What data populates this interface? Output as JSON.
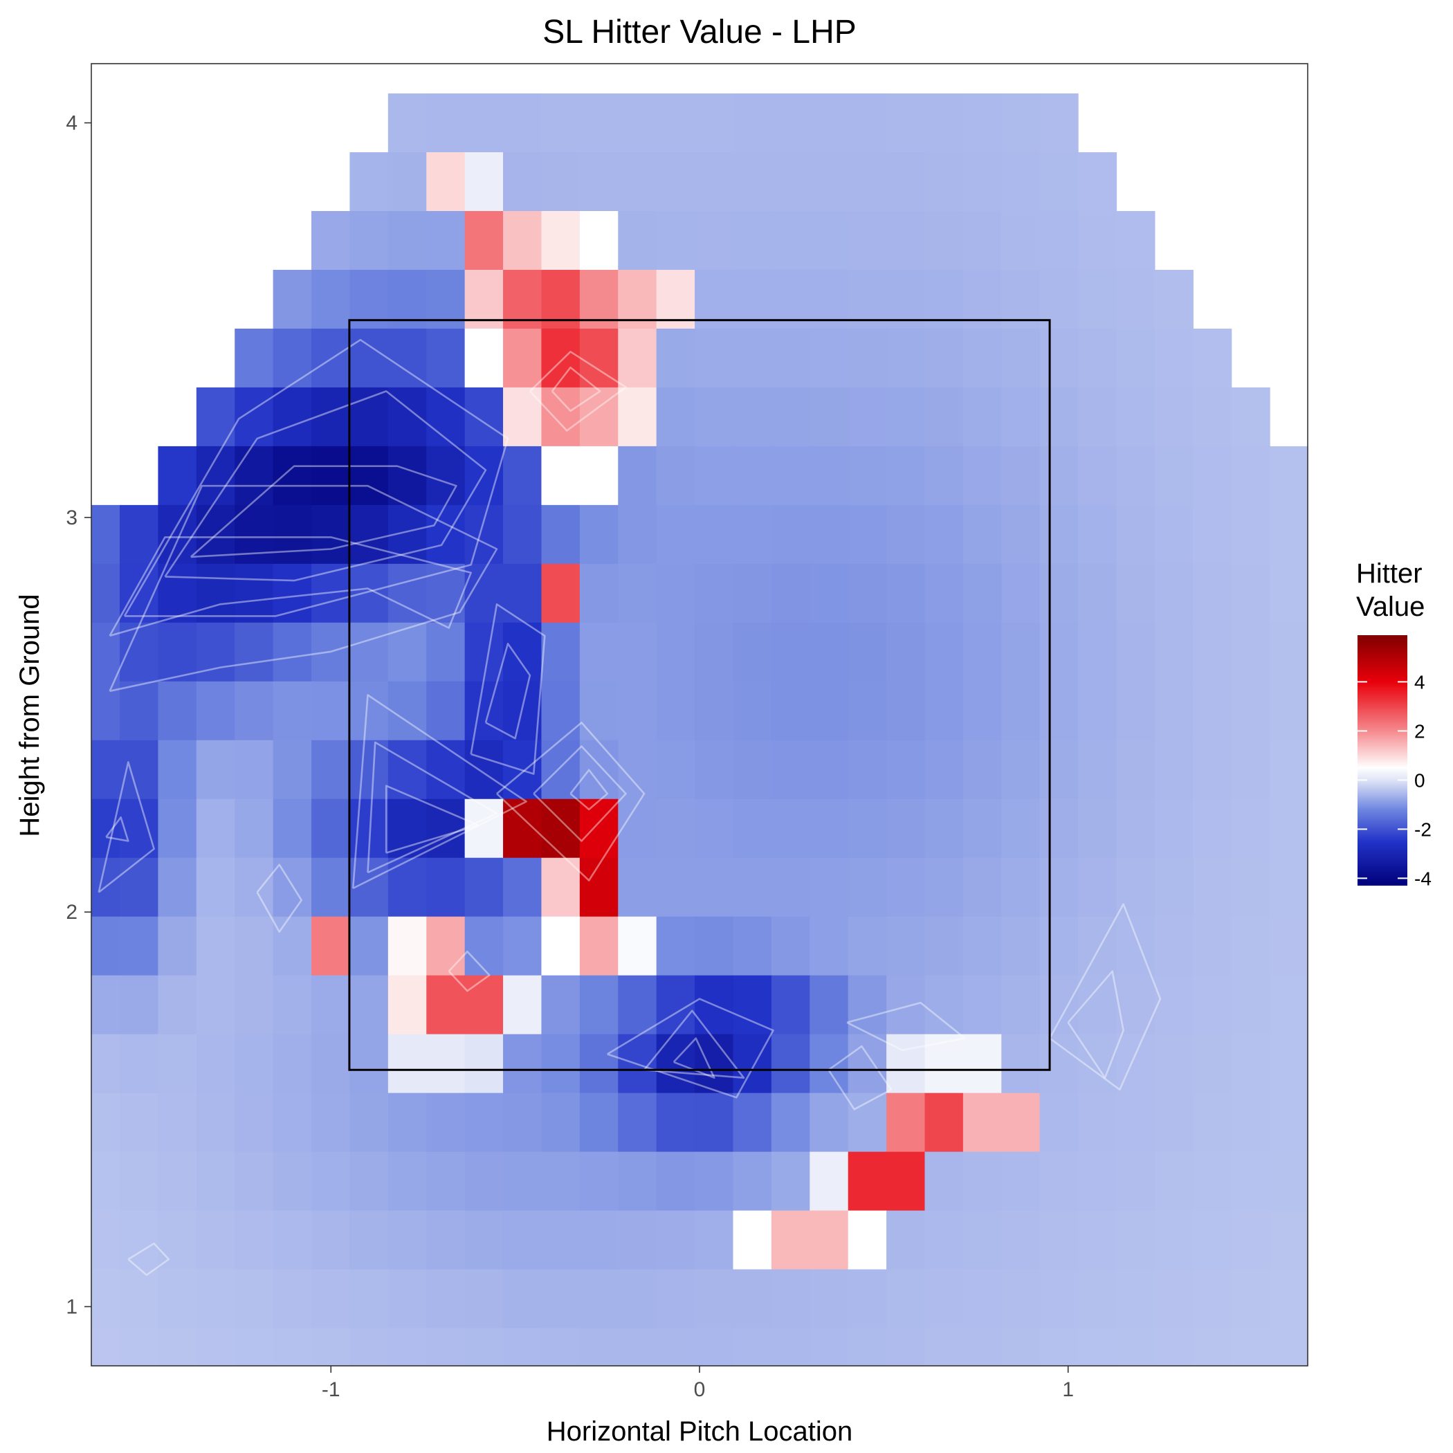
{
  "chart_data": {
    "type": "heatmap",
    "title": "SL Hitter Value - LHP",
    "xlabel": "Horizontal Pitch Location",
    "ylabel": "Height from Ground",
    "xlim": [
      -1.65,
      1.65
    ],
    "ylim": [
      0.85,
      4.15
    ],
    "x_ticks": [
      -1,
      0,
      1
    ],
    "x_tick_labels": [
      "-1",
      "0",
      "1"
    ],
    "y_ticks": [
      1,
      2,
      3,
      4
    ],
    "y_tick_labels": [
      "1",
      "2",
      "3",
      "4"
    ],
    "grid": false,
    "strike_zone": {
      "x_min": -0.95,
      "x_max": 0.95,
      "y_min": 1.6,
      "y_max": 3.5
    },
    "legend": {
      "title_lines": [
        "Hitter",
        "Value"
      ],
      "placement": "right",
      "min": -4.3,
      "max": 5.9,
      "ticks": [
        -4,
        -2,
        0,
        2,
        4
      ],
      "tick_labels": [
        "-4",
        "-2",
        "0",
        "2",
        "4"
      ],
      "stops": [
        {
          "value": -4.3,
          "color": "#00007a"
        },
        {
          "value": -2.5,
          "color": "#2233c8"
        },
        {
          "value": -1.2,
          "color": "#6f86e0"
        },
        {
          "value": 0.0,
          "color": "#dfe4f6"
        },
        {
          "value": 0.5,
          "color": "#ffffff"
        },
        {
          "value": 2.0,
          "color": "#f58a8e"
        },
        {
          "value": 4.0,
          "color": "#e8000b"
        },
        {
          "value": 5.9,
          "color": "#800000"
        }
      ]
    },
    "grid_spec": {
      "x0": -1.625,
      "dx": 0.104,
      "ncols": 32,
      "y_top": 4.0,
      "dy": 0.149,
      "nrows": 22
    },
    "row_ranges": [
      [
        8,
        25
      ],
      [
        7,
        26
      ],
      [
        6,
        27
      ],
      [
        5,
        28
      ],
      [
        4,
        29
      ],
      [
        3,
        30
      ],
      [
        2,
        31
      ],
      [
        0,
        31
      ],
      [
        0,
        31
      ],
      [
        0,
        31
      ],
      [
        0,
        31
      ],
      [
        0,
        31
      ],
      [
        0,
        31
      ],
      [
        0,
        31
      ],
      [
        0,
        31
      ],
      [
        0,
        31
      ],
      [
        0,
        31
      ],
      [
        0,
        31
      ],
      [
        0,
        31
      ],
      [
        0,
        31
      ],
      [
        0,
        31
      ],
      [
        0,
        31
      ]
    ],
    "hot_cells": [
      [
        1,
        9,
        1.0
      ],
      [
        1,
        10,
        0.2
      ],
      [
        2,
        10,
        2.3
      ],
      [
        2,
        11,
        1.3
      ],
      [
        2,
        12,
        0.8
      ],
      [
        2,
        13,
        0.5
      ],
      [
        3,
        10,
        1.2
      ],
      [
        3,
        11,
        2.6
      ],
      [
        3,
        12,
        2.9
      ],
      [
        3,
        13,
        2.0
      ],
      [
        3,
        14,
        1.4
      ],
      [
        3,
        15,
        0.9
      ],
      [
        4,
        10,
        0.5
      ],
      [
        4,
        11,
        1.9
      ],
      [
        4,
        12,
        3.3
      ],
      [
        4,
        13,
        2.9
      ],
      [
        4,
        14,
        1.2
      ],
      [
        5,
        11,
        0.9
      ],
      [
        5,
        12,
        1.9
      ],
      [
        5,
        13,
        1.6
      ],
      [
        5,
        14,
        0.8
      ],
      [
        6,
        12,
        0.5
      ],
      [
        6,
        13,
        0.5
      ],
      [
        8,
        12,
        2.9
      ],
      [
        12,
        11,
        5.0
      ],
      [
        12,
        12,
        5.2
      ],
      [
        12,
        13,
        4.2
      ],
      [
        12,
        10,
        0.3
      ],
      [
        13,
        12,
        1.2
      ],
      [
        13,
        13,
        4.4
      ],
      [
        14,
        6,
        2.2
      ],
      [
        14,
        8,
        0.6
      ],
      [
        14,
        9,
        1.6
      ],
      [
        14,
        12,
        0.5
      ],
      [
        14,
        13,
        1.6
      ],
      [
        14,
        14,
        0.4
      ],
      [
        15,
        8,
        0.8
      ],
      [
        15,
        9,
        2.8
      ],
      [
        15,
        10,
        2.8
      ],
      [
        15,
        11,
        0.2
      ],
      [
        16,
        8,
        0.1
      ],
      [
        16,
        9,
        0.1
      ],
      [
        16,
        10,
        0.0
      ],
      [
        17,
        21,
        2.2
      ],
      [
        17,
        22,
        3.0
      ],
      [
        17,
        23,
        1.5
      ],
      [
        17,
        24,
        1.5
      ],
      [
        16,
        21,
        0.1
      ],
      [
        16,
        22,
        0.3
      ],
      [
        16,
        23,
        0.3
      ],
      [
        18,
        19,
        0.2
      ],
      [
        18,
        20,
        3.4
      ],
      [
        18,
        21,
        3.4
      ],
      [
        19,
        17,
        0.5
      ],
      [
        19,
        18,
        1.4
      ],
      [
        19,
        19,
        1.4
      ],
      [
        19,
        20,
        0.5
      ]
    ],
    "cold_spots": [
      {
        "x": -1.0,
        "y": 3.08,
        "amp": -2.2,
        "sx": 0.35,
        "sy": 0.19
      },
      {
        "x": -1.28,
        "y": 2.93,
        "amp": -1.5,
        "sx": 0.3,
        "sy": 0.22
      },
      {
        "x": -0.82,
        "y": 3.3,
        "amp": -1.1,
        "sx": 0.3,
        "sy": 0.25
      },
      {
        "x": -0.52,
        "y": 2.6,
        "amp": -1.9,
        "sx": 0.09,
        "sy": 0.22
      },
      {
        "x": -0.75,
        "y": 2.22,
        "amp": -2.3,
        "sx": 0.22,
        "sy": 0.17
      },
      {
        "x": -1.58,
        "y": 2.2,
        "amp": -2.6,
        "sx": 0.1,
        "sy": 0.22
      },
      {
        "x": -1.45,
        "y": 2.72,
        "amp": -1.2,
        "sx": 0.22,
        "sy": 0.2
      },
      {
        "x": 0.0,
        "y": 1.62,
        "amp": -2.2,
        "sx": 0.16,
        "sy": 0.14
      },
      {
        "x": 0.2,
        "y": 1.72,
        "amp": -1.0,
        "sx": 0.15,
        "sy": 0.08
      },
      {
        "x": 0.3,
        "y": 2.6,
        "amp": -0.5,
        "sx": 0.55,
        "sy": 0.55
      },
      {
        "x": -0.5,
        "y": 1.55,
        "amp": -0.4,
        "sx": 0.5,
        "sy": 0.3
      }
    ],
    "base_value": -0.55,
    "contours": [
      [
        [
          -1.38,
          2.9
        ],
        [
          -1.1,
          3.13
        ],
        [
          -0.82,
          3.13
        ],
        [
          -0.66,
          3.08
        ],
        [
          -0.72,
          2.98
        ],
        [
          -1.0,
          2.92
        ],
        [
          -1.38,
          2.9
        ]
      ],
      [
        [
          -1.45,
          2.85
        ],
        [
          -1.2,
          3.2
        ],
        [
          -0.85,
          3.32
        ],
        [
          -0.58,
          3.12
        ],
        [
          -0.7,
          2.93
        ],
        [
          -1.1,
          2.84
        ],
        [
          -1.45,
          2.85
        ]
      ],
      [
        [
          -1.56,
          2.75
        ],
        [
          -1.25,
          3.25
        ],
        [
          -0.92,
          3.45
        ],
        [
          -0.52,
          3.2
        ],
        [
          -0.62,
          2.88
        ],
        [
          -1.15,
          2.75
        ],
        [
          -1.56,
          2.75
        ]
      ],
      [
        [
          -0.58,
          2.48
        ],
        [
          -0.52,
          2.68
        ],
        [
          -0.46,
          2.6
        ],
        [
          -0.5,
          2.44
        ],
        [
          -0.58,
          2.48
        ]
      ],
      [
        [
          -0.62,
          2.4
        ],
        [
          -0.55,
          2.78
        ],
        [
          -0.42,
          2.7
        ],
        [
          -0.45,
          2.35
        ],
        [
          -0.62,
          2.4
        ]
      ],
      [
        [
          -0.85,
          2.15
        ],
        [
          -0.85,
          2.32
        ],
        [
          -0.6,
          2.22
        ],
        [
          -0.85,
          2.15
        ]
      ],
      [
        [
          -0.9,
          2.1
        ],
        [
          -0.88,
          2.43
        ],
        [
          -0.55,
          2.25
        ],
        [
          -0.9,
          2.1
        ]
      ],
      [
        [
          -0.94,
          2.06
        ],
        [
          -0.9,
          2.55
        ],
        [
          -0.47,
          2.28
        ],
        [
          -0.94,
          2.06
        ]
      ],
      [
        [
          -1.61,
          2.19
        ],
        [
          -1.57,
          2.24
        ],
        [
          -1.55,
          2.18
        ],
        [
          -1.61,
          2.19
        ]
      ],
      [
        [
          -1.63,
          2.05
        ],
        [
          -1.55,
          2.38
        ],
        [
          -1.48,
          2.16
        ],
        [
          -1.63,
          2.05
        ]
      ],
      [
        [
          -0.07,
          1.62
        ],
        [
          -0.01,
          1.68
        ],
        [
          0.04,
          1.58
        ],
        [
          -0.07,
          1.62
        ]
      ],
      [
        [
          -0.15,
          1.6
        ],
        [
          -0.02,
          1.75
        ],
        [
          0.12,
          1.58
        ],
        [
          -0.15,
          1.6
        ]
      ],
      [
        [
          -0.25,
          1.64
        ],
        [
          0.0,
          1.78
        ],
        [
          0.2,
          1.7
        ],
        [
          0.1,
          1.53
        ],
        [
          -0.25,
          1.64
        ]
      ],
      [
        [
          -0.35,
          2.3
        ],
        [
          -0.3,
          2.36
        ],
        [
          -0.25,
          2.3
        ],
        [
          -0.3,
          2.26
        ],
        [
          -0.35,
          2.3
        ]
      ],
      [
        [
          -0.45,
          2.3
        ],
        [
          -0.32,
          2.42
        ],
        [
          -0.2,
          2.3
        ],
        [
          -0.32,
          2.18
        ],
        [
          -0.45,
          2.3
        ]
      ],
      [
        [
          -0.55,
          2.3
        ],
        [
          -0.32,
          2.48
        ],
        [
          -0.15,
          2.3
        ],
        [
          -0.3,
          2.08
        ],
        [
          -0.55,
          2.3
        ]
      ],
      [
        [
          -0.4,
          3.32
        ],
        [
          -0.35,
          3.38
        ],
        [
          -0.27,
          3.32
        ],
        [
          -0.35,
          3.27
        ],
        [
          -0.4,
          3.32
        ]
      ],
      [
        [
          -0.46,
          3.32
        ],
        [
          -0.35,
          3.42
        ],
        [
          -0.2,
          3.33
        ],
        [
          -0.36,
          3.22
        ],
        [
          -0.46,
          3.32
        ]
      ],
      [
        [
          -0.68,
          1.85
        ],
        [
          -0.63,
          1.9
        ],
        [
          -0.57,
          1.84
        ],
        [
          -0.63,
          1.8
        ],
        [
          -0.68,
          1.85
        ]
      ],
      [
        [
          0.35,
          1.6
        ],
        [
          0.44,
          1.66
        ],
        [
          0.52,
          1.55
        ],
        [
          0.42,
          1.5
        ],
        [
          0.35,
          1.6
        ]
      ],
      [
        [
          0.4,
          1.72
        ],
        [
          0.6,
          1.77
        ],
        [
          0.72,
          1.68
        ],
        [
          0.55,
          1.65
        ],
        [
          0.4,
          1.72
        ]
      ],
      [
        [
          -1.2,
          2.05
        ],
        [
          -1.14,
          2.12
        ],
        [
          -1.08,
          2.03
        ],
        [
          -1.14,
          1.95
        ],
        [
          -1.2,
          2.05
        ]
      ],
      [
        [
          -1.55,
          1.12
        ],
        [
          -1.48,
          1.16
        ],
        [
          -1.44,
          1.12
        ],
        [
          -1.5,
          1.08
        ],
        [
          -1.55,
          1.12
        ]
      ],
      [
        [
          -1.6,
          2.7
        ],
        [
          -1.3,
          2.78
        ],
        [
          -0.9,
          2.82
        ],
        [
          -0.68,
          2.72
        ],
        [
          -0.62,
          2.86
        ],
        [
          -1.0,
          2.95
        ],
        [
          -1.45,
          2.95
        ],
        [
          -1.6,
          2.7
        ]
      ],
      [
        [
          -1.6,
          2.56
        ],
        [
          -1.3,
          2.62
        ],
        [
          -1.0,
          2.66
        ],
        [
          -0.65,
          2.76
        ],
        [
          -0.55,
          2.92
        ],
        [
          -0.9,
          3.08
        ],
        [
          -1.35,
          3.08
        ],
        [
          -1.6,
          2.56
        ]
      ],
      [
        [
          1.0,
          1.72
        ],
        [
          1.12,
          1.85
        ],
        [
          1.15,
          1.7
        ],
        [
          1.1,
          1.58
        ],
        [
          1.0,
          1.72
        ]
      ],
      [
        [
          0.95,
          1.68
        ],
        [
          1.15,
          2.02
        ],
        [
          1.25,
          1.78
        ],
        [
          1.14,
          1.55
        ],
        [
          0.95,
          1.68
        ]
      ]
    ]
  }
}
